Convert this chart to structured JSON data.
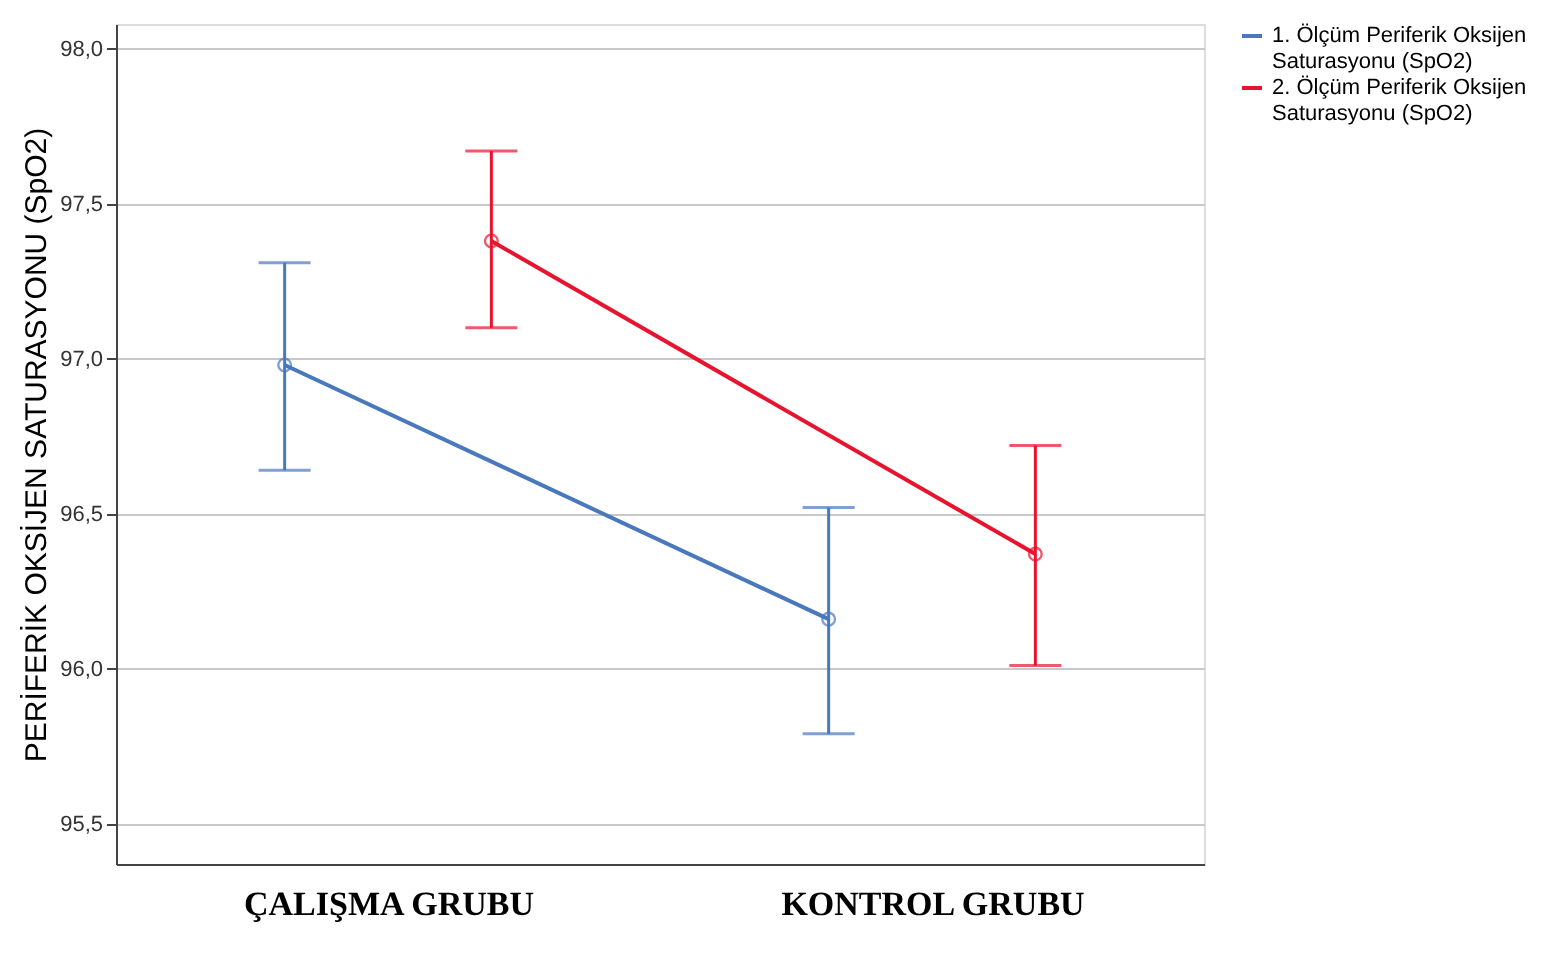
{
  "chart_data": {
    "type": "line",
    "categories": [
      "ÇALIŞMA GRUBU",
      "KONTROL GRUBU"
    ],
    "ylabel": "PERİFERİK OKSİJEN SATURASYONU (SpO2)",
    "series": [
      {
        "name": "1. Ölçüm Periferik Oksijen Saturasyonu (SpO2)",
        "color": "#4a78bd",
        "values": [
          96.98,
          96.16
        ],
        "errors": [
          [
            96.64,
            97.31
          ],
          [
            95.79,
            96.52
          ]
        ]
      },
      {
        "name": "2. Ölçüm Periferik Oksijen Saturasyonu (SpO2)",
        "color": "#e8132f",
        "values": [
          97.38,
          96.37
        ],
        "errors": [
          [
            97.1,
            97.67
          ],
          [
            96.01,
            96.72
          ]
        ]
      }
    ],
    "ylim": [
      95.37,
      98.08
    ],
    "yticks": [
      {
        "value": 95.5,
        "label": "95,5"
      },
      {
        "value": 96.0,
        "label": "96,0"
      },
      {
        "value": 96.5,
        "label": "96,5"
      },
      {
        "value": 97.0,
        "label": "97,0"
      },
      {
        "value": 97.5,
        "label": "97,5"
      },
      {
        "value": 98.0,
        "label": "98,0"
      }
    ],
    "grid": "y",
    "legend": "top right",
    "marker": "circle",
    "line_style": "solid"
  }
}
